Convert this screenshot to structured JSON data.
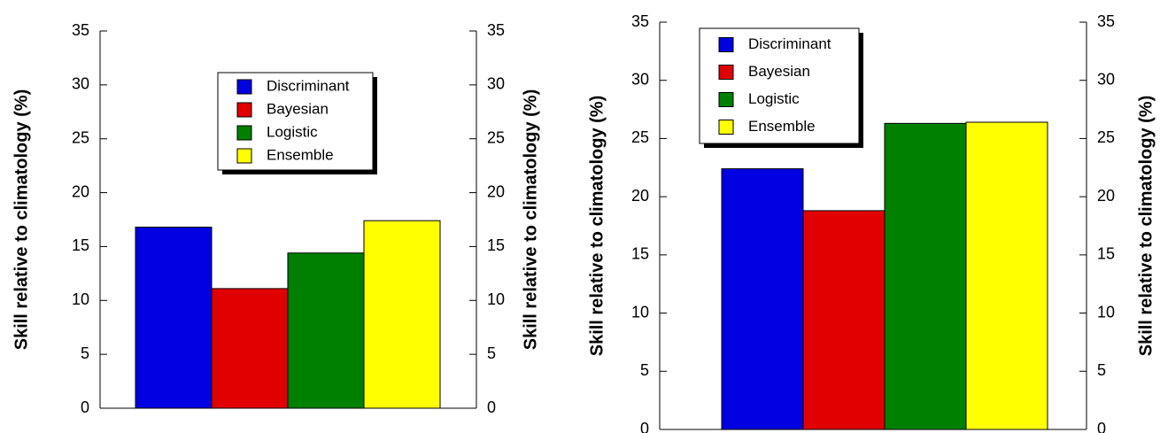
{
  "chart_data": [
    {
      "type": "bar",
      "categories": [
        null
      ],
      "series": [
        {
          "name": "Discriminant",
          "color": "#0000e0",
          "values": [
            16.8
          ]
        },
        {
          "name": "Bayesian",
          "color": "#e00000",
          "values": [
            11.1
          ]
        },
        {
          "name": "Logistic",
          "color": "#008000",
          "values": [
            14.4
          ]
        },
        {
          "name": "Ensemble",
          "color": "#ffff00",
          "values": [
            17.4
          ]
        }
      ],
      "ylabel": "Skill relative to climatology (%)",
      "y2label": "Skill relative to climatology (%)",
      "ylim": [
        0,
        35
      ],
      "yticks": [
        0,
        5,
        10,
        15,
        20,
        25,
        30,
        35
      ],
      "y2lim": [
        0,
        35
      ],
      "y2ticks": [
        0,
        5,
        10,
        15,
        20,
        25,
        30,
        35
      ],
      "grid": false,
      "legend": "upper center"
    },
    {
      "type": "bar",
      "categories": [
        null
      ],
      "series": [
        {
          "name": "Discriminant",
          "color": "#0000e0",
          "values": [
            22.4
          ]
        },
        {
          "name": "Bayesian",
          "color": "#e00000",
          "values": [
            18.8
          ]
        },
        {
          "name": "Logistic",
          "color": "#008000",
          "values": [
            26.3
          ]
        },
        {
          "name": "Ensemble",
          "color": "#ffff00",
          "values": [
            26.4
          ]
        }
      ],
      "ylabel": "Skill relative to climatology (%)",
      "y2label": "Skill relative to climatology (%)",
      "ylim": [
        0,
        35
      ],
      "yticks": [
        0,
        5,
        10,
        15,
        20,
        25,
        30,
        35
      ],
      "y2lim": [
        0,
        35
      ],
      "y2ticks": [
        0,
        5,
        10,
        15,
        20,
        25,
        30,
        35
      ],
      "grid": false,
      "legend": "upper left"
    }
  ]
}
